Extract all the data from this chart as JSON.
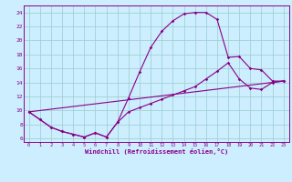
{
  "xlabel": "Windchill (Refroidissement éolien,°C)",
  "bg_color": "#cceeff",
  "line_color": "#880088",
  "grid_color": "#99cccc",
  "xlim": [
    -0.5,
    23.5
  ],
  "ylim": [
    5.5,
    25.0
  ],
  "xticks": [
    0,
    1,
    2,
    3,
    4,
    5,
    6,
    7,
    8,
    9,
    10,
    11,
    12,
    13,
    14,
    15,
    16,
    17,
    18,
    19,
    20,
    21,
    22,
    23
  ],
  "yticks": [
    6,
    8,
    10,
    12,
    14,
    16,
    18,
    20,
    22,
    24
  ],
  "line1_x": [
    0,
    1,
    2,
    3,
    4,
    5,
    6,
    7,
    8,
    9,
    10,
    11,
    12,
    13,
    14,
    15,
    16,
    17,
    18,
    19,
    20,
    21,
    22,
    23
  ],
  "line1_y": [
    9.8,
    8.7,
    7.6,
    7.0,
    6.6,
    6.2,
    6.8,
    6.2,
    8.3,
    11.8,
    15.5,
    19.0,
    21.3,
    22.8,
    23.8,
    24.0,
    24.0,
    23.0,
    17.6,
    17.7,
    16.0,
    15.8,
    14.2,
    14.2
  ],
  "line2_x": [
    0,
    1,
    2,
    3,
    4,
    5,
    6,
    7,
    8,
    9,
    10,
    11,
    12,
    13,
    14,
    15,
    16,
    17,
    18,
    19,
    20,
    21,
    22,
    23
  ],
  "line2_y": [
    9.8,
    8.7,
    7.6,
    7.0,
    6.6,
    6.2,
    6.8,
    6.2,
    8.3,
    9.8,
    10.4,
    11.0,
    11.6,
    12.2,
    12.8,
    13.4,
    14.5,
    15.6,
    16.8,
    14.5,
    13.2,
    13.0,
    14.0,
    14.2
  ],
  "line3_x": [
    0,
    23
  ],
  "line3_y": [
    9.8,
    14.2
  ]
}
